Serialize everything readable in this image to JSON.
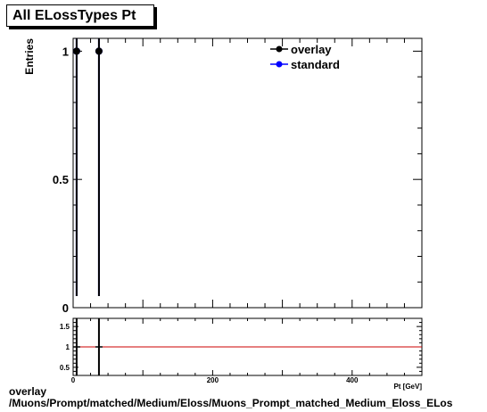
{
  "title": "All ELossTypes Pt",
  "footer": {
    "line1": "overlay",
    "line2": "/Muons/Prompt/matched/Medium/Eloss/Muons_Prompt_matched_Medium_Eloss_ELos"
  },
  "chart_data": [
    {
      "type": "scatter",
      "title": "All ELossTypes Pt",
      "xlabel": "",
      "ylabel": "Entries",
      "xlim": [
        0,
        500
      ],
      "ylim": [
        0,
        1.05
      ],
      "y_ticks": [
        {
          "value": 0,
          "label": "0"
        },
        {
          "value": 0.5,
          "label": "0.5"
        },
        {
          "value": 1,
          "label": "1"
        }
      ],
      "grid": false,
      "legend_placement": "top-right",
      "colors": {
        "overlay": "#000000",
        "standard": "#0000ff"
      },
      "series": [
        {
          "name": "overlay",
          "points": [
            {
              "x": 5,
              "y": 1
            },
            {
              "x": 37,
              "y": 1
            }
          ]
        },
        {
          "name": "standard",
          "points": [
            {
              "x": 5,
              "y": 1
            },
            {
              "x": 37,
              "y": 1
            }
          ]
        }
      ]
    },
    {
      "type": "line",
      "xlabel": "Pt [GeV]",
      "ylabel": "",
      "xlim": [
        0,
        500
      ],
      "ylim": [
        0.3,
        1.7
      ],
      "x_ticks": [
        {
          "value": 0,
          "label": "0"
        },
        {
          "value": 200,
          "label": "200"
        },
        {
          "value": 400,
          "label": "400"
        }
      ],
      "y_ticks": [
        {
          "value": 0.5,
          "label": "0.5"
        },
        {
          "value": 1,
          "label": "1"
        },
        {
          "value": 1.5,
          "label": "1.5"
        }
      ],
      "reference_line": {
        "y": 1,
        "color": "#cc0000"
      },
      "grid": false,
      "series": [
        {
          "points": [
            {
              "x": 5,
              "y": 1
            },
            {
              "x": 37,
              "y": 1
            }
          ]
        }
      ]
    }
  ]
}
